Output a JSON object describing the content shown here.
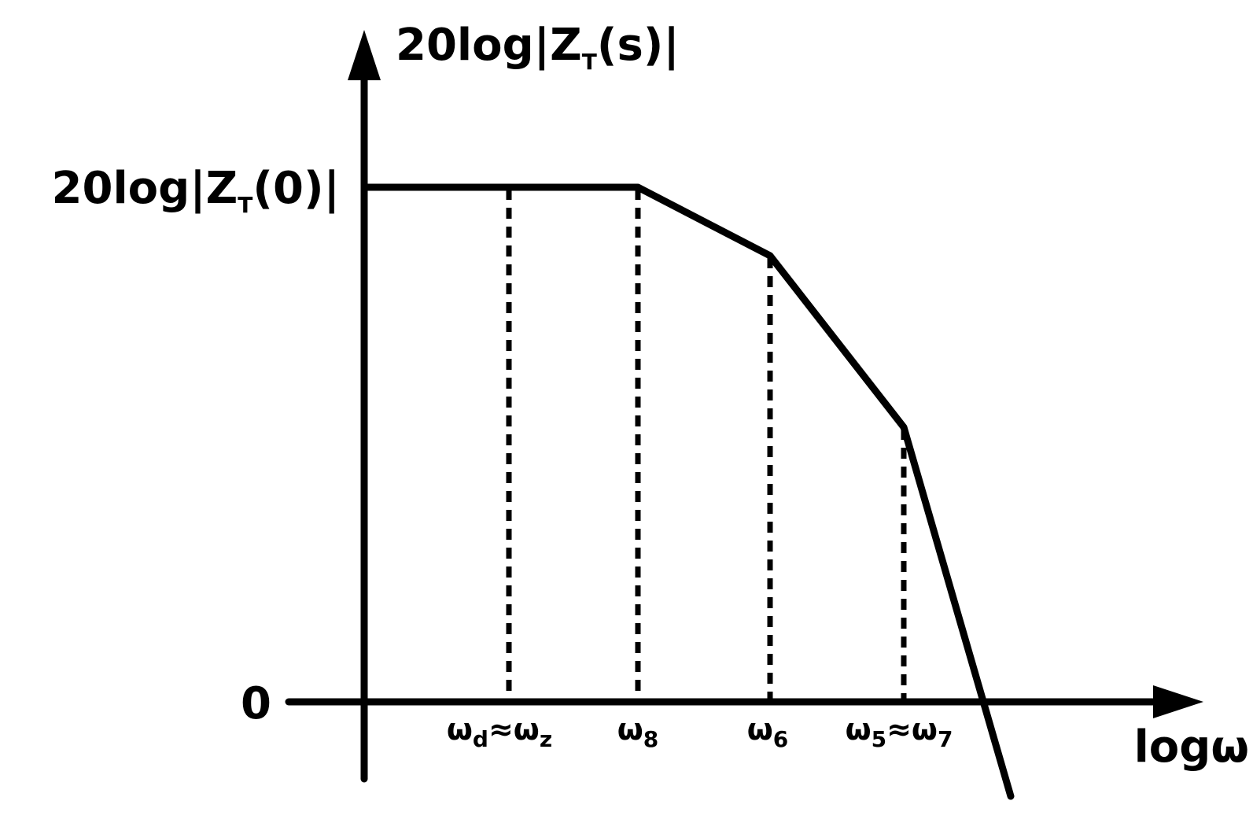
{
  "diagram": {
    "type": "bode-magnitude-asymptote",
    "y_axis_label": {
      "main": "20log|Z",
      "sub": "T",
      "tail": "(s)|"
    },
    "y_level_label": {
      "main": "20log|Z",
      "sub": "T",
      "tail": "(0)|"
    },
    "zero_label": "0",
    "x_axis_label": "logω",
    "frequency_labels": [
      {
        "id": "wd-wz",
        "parts": [
          {
            "t": "ω"
          },
          {
            "t": "d",
            "sub": true
          },
          {
            "t": "≈ω"
          },
          {
            "t": "z",
            "sub": true
          }
        ]
      },
      {
        "id": "w8",
        "parts": [
          {
            "t": "ω"
          },
          {
            "t": "8",
            "sub": true
          }
        ]
      },
      {
        "id": "w6",
        "parts": [
          {
            "t": "ω"
          },
          {
            "t": "6",
            "sub": true
          }
        ]
      },
      {
        "id": "w5-w7",
        "parts": [
          {
            "t": "ω"
          },
          {
            "t": "5",
            "sub": true
          },
          {
            "t": "≈ω"
          },
          {
            "t": "7",
            "sub": true
          }
        ]
      }
    ],
    "colors": {
      "line": "#000000",
      "background": "#ffffff"
    }
  }
}
